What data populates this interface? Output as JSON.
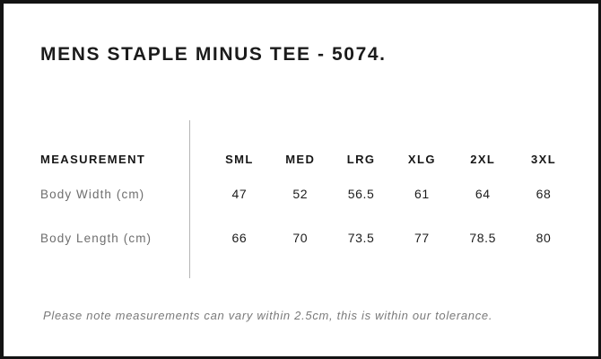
{
  "page": {
    "title": "MENS STAPLE MINUS TEE - 5074.",
    "footnote": "Please note measurements can vary within 2.5cm, this is within our tolerance."
  },
  "size_chart": {
    "measurement_header": "MEASUREMENT",
    "size_headers": [
      "SML",
      "MED",
      "LRG",
      "XLG",
      "2XL",
      "3XL"
    ],
    "rows": [
      {
        "label": "Body Width (cm)",
        "values": [
          "47",
          "52",
          "56.5",
          "61",
          "64",
          "68"
        ]
      },
      {
        "label": "Body Length (cm)",
        "values": [
          "66",
          "70",
          "73.5",
          "77",
          "78.5",
          "80"
        ]
      }
    ]
  },
  "colors": {
    "frame_border": "#131313",
    "title_text": "#1b1b1b",
    "header_text": "#171717",
    "row_label_text": "#6e6e6e",
    "value_text": "#1c1c1c",
    "divider": "#b5b5b5",
    "footnote_text": "#7a7a7a",
    "background": "#ffffff"
  },
  "chart_data": {
    "type": "table",
    "title": "MENS STAPLE MINUS TEE - 5074.",
    "columns": [
      "MEASUREMENT",
      "SML",
      "MED",
      "LRG",
      "XLG",
      "2XL",
      "3XL"
    ],
    "rows": [
      [
        "Body Width (cm)",
        47,
        52,
        56.5,
        61,
        64,
        68
      ],
      [
        "Body Length (cm)",
        66,
        70,
        73.5,
        77,
        78.5,
        80
      ]
    ],
    "note": "Please note measurements can vary within 2.5cm, this is within our tolerance."
  }
}
